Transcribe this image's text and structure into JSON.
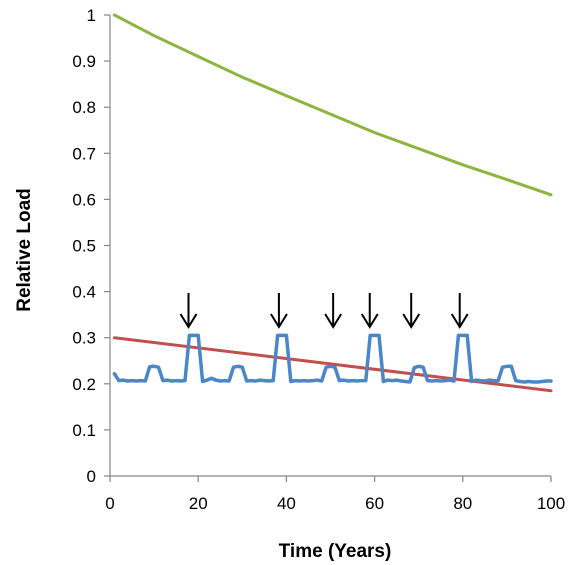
{
  "chart_data": {
    "type": "line",
    "title": "",
    "xlabel": "Time (Years)",
    "ylabel": "Relative Load",
    "xlim": [
      0,
      100
    ],
    "ylim": [
      0,
      1
    ],
    "x_ticks": [
      0,
      20,
      40,
      60,
      80,
      100
    ],
    "y_ticks": [
      0,
      0.1,
      0.2,
      0.3,
      0.4,
      0.5,
      0.6,
      0.7,
      0.8,
      0.9,
      1
    ],
    "x_tick_labels": [
      "0",
      "20",
      "40",
      "60",
      "80",
      "100"
    ],
    "y_tick_labels": [
      "0",
      "0.1",
      "0.2",
      "0.3",
      "0.4",
      "0.5",
      "0.6",
      "0.7",
      "0.8",
      "0.9",
      "1"
    ],
    "grid": false,
    "legend": "none",
    "series": [
      {
        "color": "#8db43e",
        "x": [
          1,
          10,
          20,
          30,
          40,
          50,
          60,
          70,
          80,
          90,
          100
        ],
        "values": [
          1.0,
          0.955,
          0.91,
          0.865,
          0.825,
          0.785,
          0.745,
          0.71,
          0.675,
          0.643,
          0.61
        ]
      },
      {
        "color": "#c0504d",
        "x": [
          1,
          100
        ],
        "values": [
          0.3,
          0.185
        ]
      },
      {
        "color": "#4a86c8",
        "x": [
          1,
          2,
          3,
          4,
          5,
          6,
          7,
          8,
          9,
          10,
          11,
          12,
          13,
          14,
          15,
          16,
          17,
          18,
          19,
          20,
          21,
          22,
          23,
          24,
          25,
          26,
          27,
          28,
          29,
          30,
          31,
          32,
          33,
          34,
          35,
          36,
          37,
          38,
          39,
          40,
          41,
          42,
          43,
          44,
          45,
          46,
          47,
          48,
          49,
          50,
          51,
          52,
          53,
          54,
          55,
          56,
          57,
          58,
          59,
          60,
          61,
          62,
          63,
          64,
          65,
          66,
          67,
          68,
          69,
          70,
          71,
          72,
          73,
          74,
          75,
          76,
          77,
          78,
          79,
          80,
          81,
          82,
          83,
          84,
          85,
          86,
          87,
          88,
          89,
          90,
          91,
          92,
          93,
          94,
          95,
          96,
          97,
          98,
          99,
          100
        ],
        "values": [
          0.222,
          0.207,
          0.208,
          0.206,
          0.207,
          0.206,
          0.207,
          0.206,
          0.237,
          0.238,
          0.236,
          0.207,
          0.208,
          0.206,
          0.207,
          0.206,
          0.207,
          0.305,
          0.305,
          0.305,
          0.205,
          0.208,
          0.212,
          0.208,
          0.206,
          0.207,
          0.206,
          0.236,
          0.238,
          0.236,
          0.206,
          0.207,
          0.206,
          0.208,
          0.207,
          0.206,
          0.207,
          0.305,
          0.305,
          0.305,
          0.205,
          0.207,
          0.206,
          0.207,
          0.206,
          0.207,
          0.208,
          0.206,
          0.236,
          0.238,
          0.236,
          0.207,
          0.208,
          0.206,
          0.207,
          0.206,
          0.207,
          0.207,
          0.305,
          0.305,
          0.305,
          0.205,
          0.208,
          0.207,
          0.208,
          0.206,
          0.205,
          0.204,
          0.235,
          0.238,
          0.236,
          0.207,
          0.206,
          0.207,
          0.206,
          0.207,
          0.208,
          0.206,
          0.305,
          0.305,
          0.305,
          0.205,
          0.208,
          0.207,
          0.206,
          0.208,
          0.207,
          0.206,
          0.236,
          0.238,
          0.238,
          0.207,
          0.205,
          0.204,
          0.205,
          0.204,
          0.204,
          0.205,
          0.206,
          0.206
        ]
      }
    ],
    "annotations": {
      "arrow_x": [
        17.8,
        38.3,
        50.6,
        58.9,
        68.3,
        79.3
      ],
      "arrow_color": "#000000"
    },
    "colors": {
      "axis": "#868686",
      "text": "#000000"
    }
  }
}
